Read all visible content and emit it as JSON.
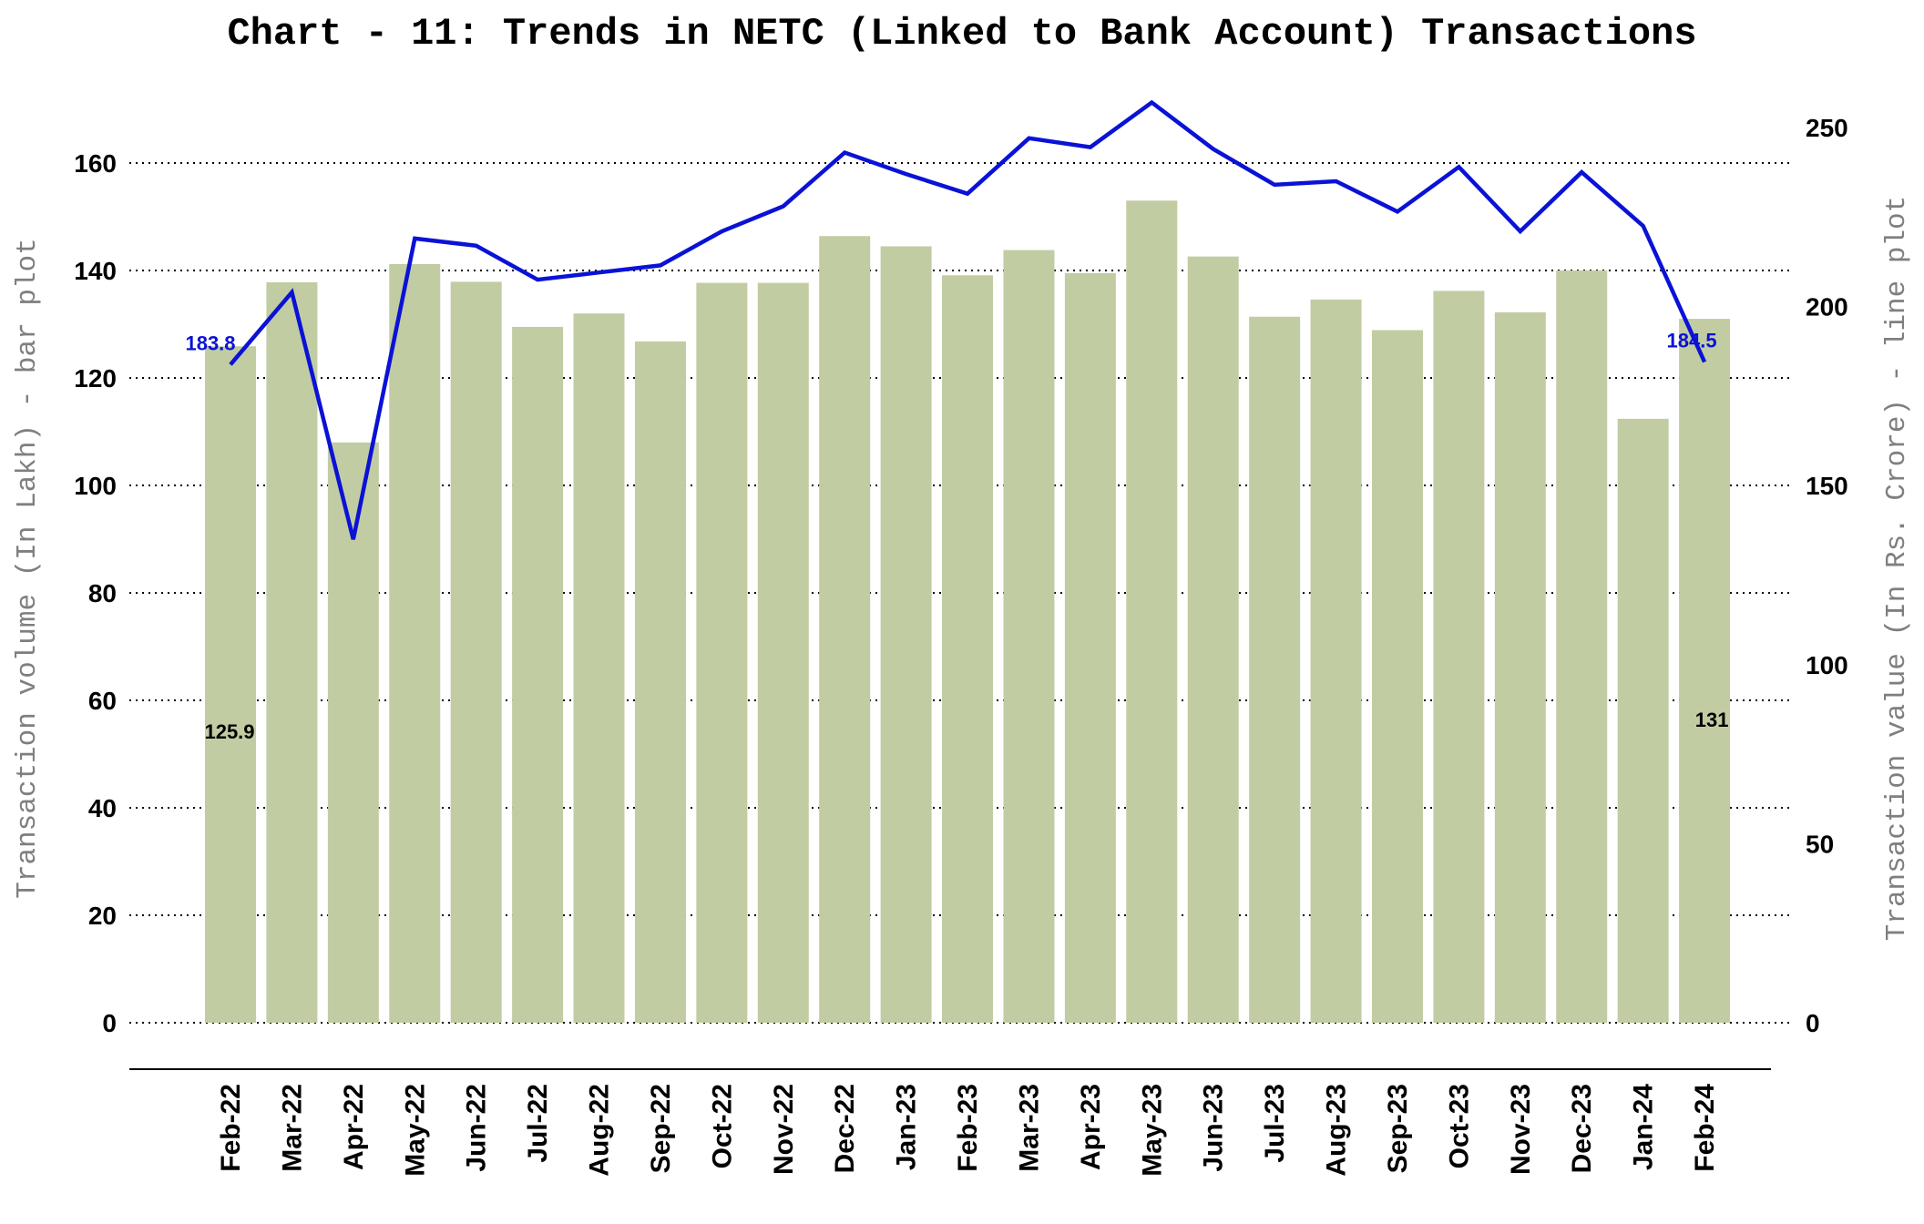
{
  "chart_data": {
    "type": "bar",
    "title": "Chart - 11: Trends in NETC (Linked to Bank Account) Transactions",
    "ylabel_left": "Transaction volume (In Lakh) - bar plot",
    "ylabel_right": "Transaction value (In Rs. Crore) - line plot",
    "categories": [
      "Feb-22",
      "Mar-22",
      "Apr-22",
      "May-22",
      "Jun-22",
      "Jul-22",
      "Aug-22",
      "Sep-22",
      "Oct-22",
      "Nov-22",
      "Dec-22",
      "Jan-23",
      "Feb-23",
      "Mar-23",
      "Apr-23",
      "May-23",
      "Jun-23",
      "Jul-23",
      "Aug-23",
      "Sep-23",
      "Oct-23",
      "Nov-23",
      "Dec-23",
      "Jan-24",
      "Feb-24"
    ],
    "series": [
      {
        "name": "Transaction volume (In Lakh)",
        "type": "bar",
        "axis": "left",
        "color": "#c2cca3",
        "values": [
          125.9,
          137.8,
          108.0,
          141.2,
          137.9,
          129.5,
          132.0,
          126.8,
          137.7,
          137.7,
          146.4,
          144.5,
          139.1,
          143.8,
          139.5,
          153.0,
          142.6,
          131.4,
          134.6,
          128.9,
          136.2,
          132.2,
          140.0,
          112.4,
          131.0
        ]
      },
      {
        "name": "Transaction value (In Rs. Crore)",
        "type": "line",
        "axis": "right",
        "color": "#0a12d6",
        "values": [
          183.8,
          204.0,
          135.0,
          219.0,
          217.0,
          207.5,
          209.5,
          211.5,
          221.0,
          228.0,
          243.0,
          237.0,
          231.5,
          247.0,
          244.5,
          257.0,
          244.0,
          234.0,
          235.0,
          226.5,
          239.0,
          221.0,
          237.5,
          222.5,
          184.5
        ]
      }
    ],
    "left_axis": {
      "min": 0,
      "max": 170,
      "ticks": [
        0,
        20,
        40,
        60,
        80,
        100,
        120,
        140,
        160
      ]
    },
    "right_axis": {
      "min": 0,
      "max": 255,
      "ticks": [
        0,
        50,
        100,
        150,
        200,
        250
      ]
    },
    "grid": true,
    "data_labels": [
      {
        "series": 0,
        "index": 0,
        "text": "125.9"
      },
      {
        "series": 0,
        "index": 24,
        "text": "131"
      },
      {
        "series": 1,
        "index": 0,
        "text": "183.8"
      },
      {
        "series": 1,
        "index": 24,
        "text": "184.5"
      }
    ]
  }
}
